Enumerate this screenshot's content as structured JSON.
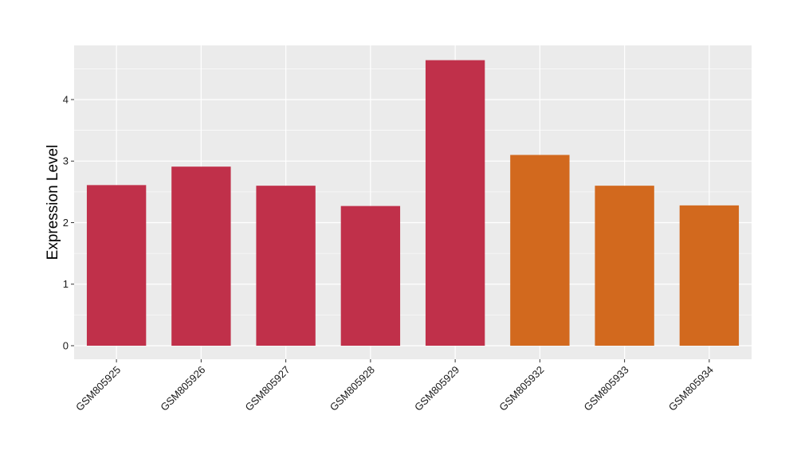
{
  "chart_data": {
    "type": "bar",
    "title": "",
    "xlabel": "",
    "ylabel": "Expression Level",
    "categories": [
      "GSM805925",
      "GSM805926",
      "GSM805927",
      "GSM805928",
      "GSM805929",
      "GSM805932",
      "GSM805933",
      "GSM805934"
    ],
    "values": [
      2.61,
      2.91,
      2.6,
      2.27,
      4.64,
      3.1,
      2.6,
      2.28
    ],
    "bar_colors": [
      "#c0304a",
      "#c0304a",
      "#c0304a",
      "#c0304a",
      "#c0304a",
      "#d2691e",
      "#d2691e",
      "#d2691e"
    ],
    "ylim": [
      -0.22,
      4.88
    ],
    "yticks": [
      0,
      1,
      2,
      3,
      4
    ],
    "grid": true,
    "legend": "none",
    "panel_background": "#ebebeb"
  }
}
